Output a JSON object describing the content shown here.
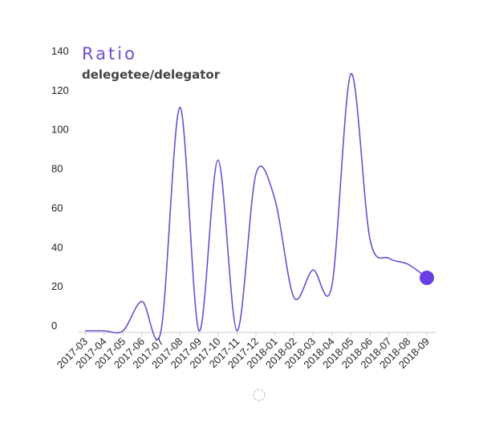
{
  "chart_data": {
    "type": "line",
    "title": "Ratio",
    "subtitle": "delegetee/delegator",
    "xlabel": "",
    "ylabel": "",
    "categories": [
      "2017-03",
      "2017-04",
      "2017-05",
      "2017-06",
      "2017-07",
      "2017-08",
      "2017-09",
      "2017-10",
      "2017-11",
      "2017-12",
      "2018-01",
      "2018-02",
      "2018-03",
      "2018-04",
      "2018-05",
      "2018-06",
      "2018-07",
      "2018-08",
      "2018-09"
    ],
    "series": [
      {
        "values": [
          0,
          0,
          0,
          15,
          0,
          114,
          0,
          87,
          0,
          80,
          67,
          17,
          31,
          23,
          131,
          47,
          37,
          34,
          27
        ]
      }
    ],
    "ylim": [
      0,
      140
    ],
    "yticks": [
      "0",
      "20",
      "40",
      "60",
      "80",
      "100",
      "120",
      "140"
    ],
    "grid": false,
    "highlight_last_point": true
  },
  "colors": {
    "line": "#6c4fd0",
    "marker": "#6a40e6",
    "title": "#6f4fd2",
    "subtitle": "#444444",
    "axis": "#cccccc",
    "spinner": "#cccccc"
  },
  "icons": {
    "spinner": "loading-spinner-icon"
  }
}
